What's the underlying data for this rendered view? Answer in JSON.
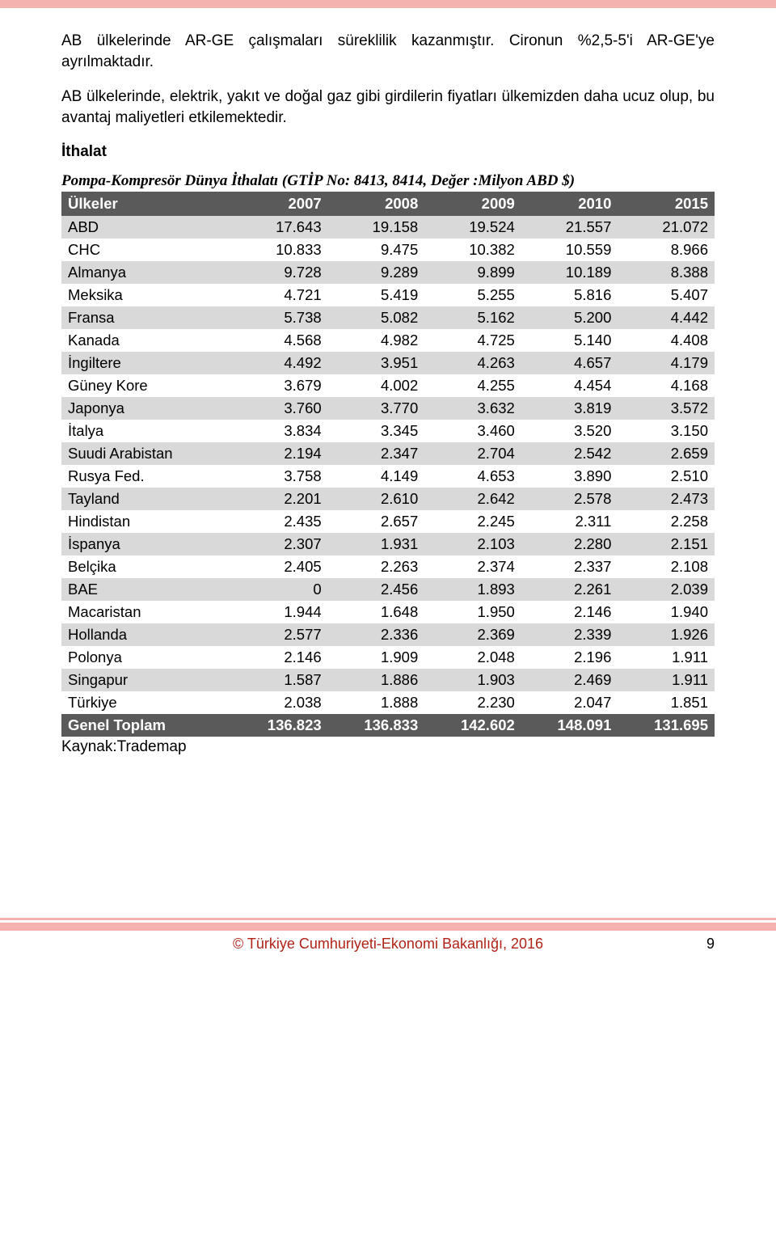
{
  "paragraphs": {
    "p1": "AB ülkelerinde AR-GE çalışmaları süreklilik kazanmıştır. Cironun %2,5-5'i AR-GE'ye ayrılmaktadır.",
    "p2": "AB ülkelerinde, elektrik, yakıt ve doğal gaz gibi girdilerin fiyatları ülkemizden daha ucuz olup, bu avantaj maliyetleri etkilemektedir."
  },
  "section_title": "İthalat",
  "table": {
    "title": "Pompa-Kompresör Dünya İthalatı (GTİP No: 8413, 8414,  Değer :Milyon ABD $)",
    "columns": [
      "Ülkeler",
      "2007",
      "2008",
      "2009",
      "2010",
      "2015"
    ],
    "rows": [
      [
        "ABD",
        "17.643",
        "19.158",
        "19.524",
        "21.557",
        "21.072"
      ],
      [
        "CHC",
        "10.833",
        "9.475",
        "10.382",
        "10.559",
        "8.966"
      ],
      [
        "Almanya",
        "9.728",
        "9.289",
        "9.899",
        "10.189",
        "8.388"
      ],
      [
        "Meksika",
        "4.721",
        "5.419",
        "5.255",
        "5.816",
        "5.407"
      ],
      [
        "Fransa",
        "5.738",
        "5.082",
        "5.162",
        "5.200",
        "4.442"
      ],
      [
        "Kanada",
        "4.568",
        "4.982",
        "4.725",
        "5.140",
        "4.408"
      ],
      [
        "İngiltere",
        "4.492",
        "3.951",
        "4.263",
        "4.657",
        "4.179"
      ],
      [
        "Güney Kore",
        "3.679",
        "4.002",
        "4.255",
        "4.454",
        "4.168"
      ],
      [
        "Japonya",
        "3.760",
        "3.770",
        "3.632",
        "3.819",
        "3.572"
      ],
      [
        "İtalya",
        "3.834",
        "3.345",
        "3.460",
        "3.520",
        "3.150"
      ],
      [
        "Suudi Arabistan",
        "2.194",
        "2.347",
        "2.704",
        "2.542",
        "2.659"
      ],
      [
        "Rusya Fed.",
        "3.758",
        "4.149",
        "4.653",
        "3.890",
        "2.510"
      ],
      [
        "Tayland",
        "2.201",
        "2.610",
        "2.642",
        "2.578",
        "2.473"
      ],
      [
        "Hindistan",
        "2.435",
        "2.657",
        "2.245",
        "2.311",
        "2.258"
      ],
      [
        "İspanya",
        "2.307",
        "1.931",
        "2.103",
        "2.280",
        "2.151"
      ],
      [
        "Belçika",
        "2.405",
        "2.263",
        "2.374",
        "2.337",
        "2.108"
      ],
      [
        "BAE",
        "0",
        "2.456",
        "1.893",
        "2.261",
        "2.039"
      ],
      [
        "Macaristan",
        "1.944",
        "1.648",
        "1.950",
        "2.146",
        "1.940"
      ],
      [
        "Hollanda",
        "2.577",
        "2.336",
        "2.369",
        "2.339",
        "1.926"
      ],
      [
        "Polonya",
        "2.146",
        "1.909",
        "2.048",
        "2.196",
        "1.911"
      ],
      [
        "Singapur",
        "1.587",
        "1.886",
        "1.903",
        "2.469",
        "1.911"
      ],
      [
        "Türkiye",
        "2.038",
        "1.888",
        "2.230",
        "2.047",
        "1.851"
      ]
    ],
    "total_row": [
      "Genel Toplam",
      "136.823",
      "136.833",
      "142.602",
      "148.091",
      "131.695"
    ],
    "source": "Kaynak:Trademap"
  },
  "footer": {
    "copyright": "© Türkiye Cumhuriyeti-Ekonomi Bakanlığı, 2016",
    "page_number": "9"
  }
}
